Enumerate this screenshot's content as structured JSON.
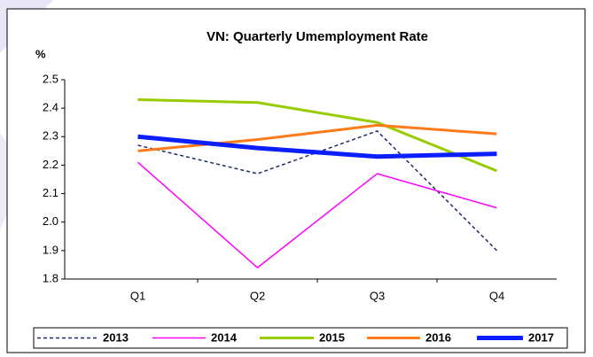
{
  "chart_data": {
    "type": "line",
    "title": "VN: Quarterly Umemployment Rate",
    "y_label": "%",
    "categories": [
      "Q1",
      "Q2",
      "Q3",
      "Q4"
    ],
    "series": [
      {
        "name": "2013",
        "color": "#1f2a6e",
        "width": 1.5,
        "dashed": true,
        "values": [
          2.27,
          2.17,
          2.32,
          1.9
        ]
      },
      {
        "name": "2014",
        "color": "#ff00ff",
        "width": 1.5,
        "dashed": false,
        "values": [
          2.21,
          1.84,
          2.17,
          2.05
        ]
      },
      {
        "name": "2015",
        "color": "#99cc00",
        "width": 3,
        "dashed": false,
        "values": [
          2.43,
          2.42,
          2.35,
          2.18
        ]
      },
      {
        "name": "2016",
        "color": "#ff7a1a",
        "width": 3,
        "dashed": false,
        "values": [
          2.25,
          2.29,
          2.34,
          2.31
        ]
      },
      {
        "name": "2017",
        "color": "#0a1eff",
        "width": 5,
        "dashed": false,
        "values": [
          2.3,
          2.26,
          2.23,
          2.24
        ]
      }
    ],
    "ylim": [
      1.8,
      2.5
    ],
    "yticks": [
      1.8,
      1.9,
      {
        "value": 2,
        "label": "2.0"
      },
      2.1,
      2.2,
      2.3,
      2.4,
      2.5
    ],
    "legend": "bottom"
  }
}
